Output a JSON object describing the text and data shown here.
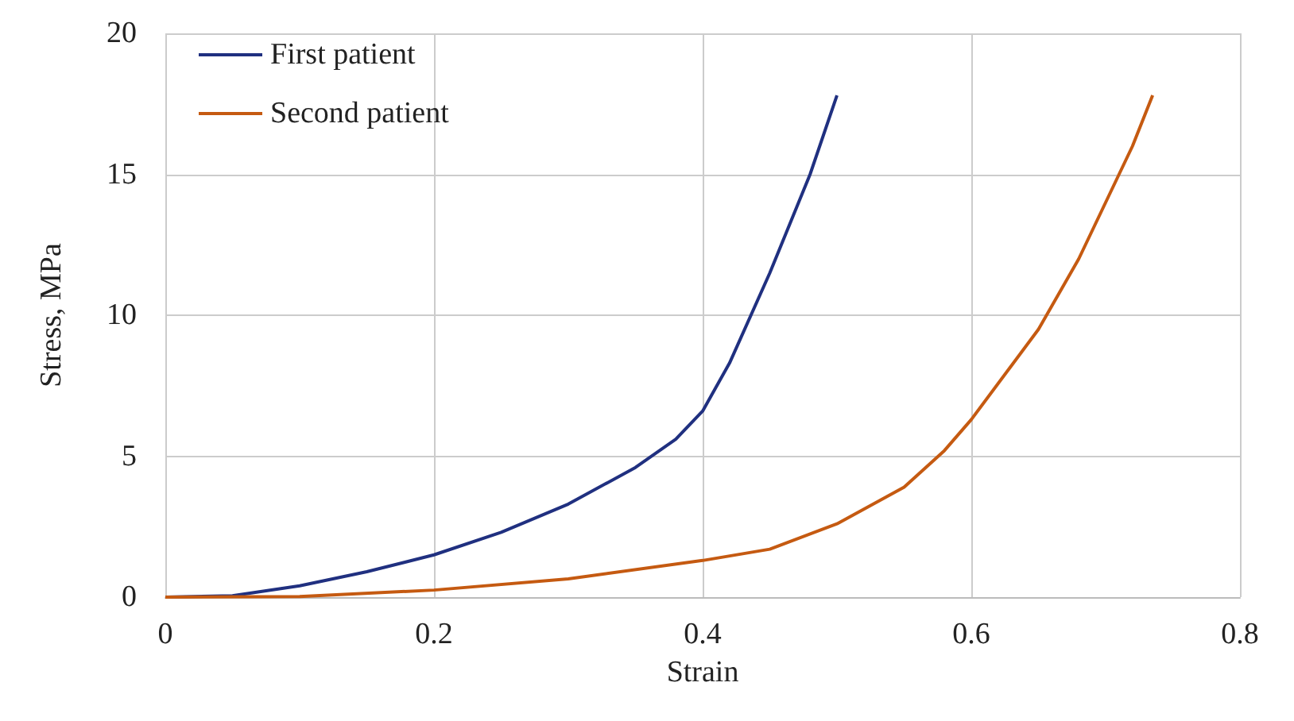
{
  "chart_data": {
    "type": "line",
    "xlabel": "Strain",
    "ylabel": "Stress, MPa",
    "xlim": [
      0,
      0.8
    ],
    "xticks": [
      {
        "value": 0,
        "label": "0"
      },
      0.2,
      0.4,
      0.6,
      0.8
    ],
    "ylim": [
      0,
      20
    ],
    "yticks": [
      0,
      5,
      10,
      15,
      20
    ],
    "grid": true,
    "legend": "top left",
    "marker": "none",
    "series": [
      {
        "name": "First patient",
        "color": "#203080",
        "x": [
          0,
          0.05,
          0.1,
          0.15,
          0.2,
          0.25,
          0.3,
          0.35,
          0.38,
          0.4,
          0.42,
          0.45,
          0.48,
          0.5
        ],
        "values": [
          0,
          0.05,
          0.4,
          0.9,
          1.5,
          2.3,
          3.3,
          4.6,
          5.6,
          6.6,
          8.3,
          11.5,
          15,
          17.8
        ]
      },
      {
        "name": "Second patient",
        "color": "#c55a11",
        "x": [
          0,
          0.1,
          0.2,
          0.3,
          0.4,
          0.45,
          0.5,
          0.55,
          0.58,
          0.6,
          0.65,
          0.68,
          0.7,
          0.72,
          0.735
        ],
        "values": [
          0,
          0.02,
          0.25,
          0.65,
          1.3,
          1.7,
          2.6,
          3.9,
          5.2,
          6.3,
          9.5,
          12,
          14,
          16,
          17.8
        ]
      }
    ]
  }
}
